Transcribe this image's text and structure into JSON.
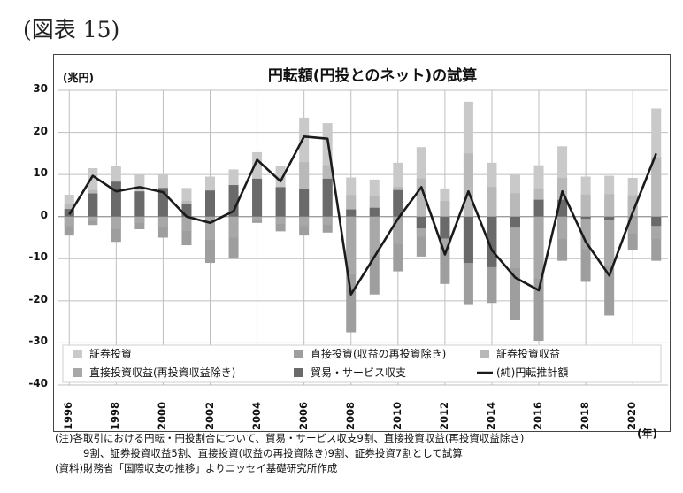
{
  "figure_label": "(図表 15)",
  "notes": [
    "(注)各取引における円転・円投割合について、貿易・サービス収支9割、直接投資収益(再投資収益除き)",
    "9割、証券投資収益5割、直接投資(収益の再投資除き)9割、証券投資7割として試算",
    "(資料)財務省「国際収支の推移」よりニッセイ基礎研究所作成"
  ],
  "colors": {
    "securities": "#c9c9c9",
    "fdi": "#9e9e9e",
    "sec_income": "#b9b9b9",
    "fdi_income": "#a8a8a8",
    "trade": "#6a6a6a",
    "net": "#1a1a1a"
  },
  "chart_data": {
    "type": "bar",
    "title": "円転額(円投とのネット)の試算",
    "ylabel": "(兆円)",
    "xlabel": "(年)",
    "ylim": [
      -40,
      30
    ],
    "yticks": [
      "30",
      "20",
      "10",
      "0",
      "-10",
      "-20",
      "-30",
      "-40"
    ],
    "xticks": [
      "1996",
      "1998",
      "2000",
      "2002",
      "2004",
      "2006",
      "2008",
      "2010",
      "2012",
      "2014",
      "2016",
      "2018",
      "2020"
    ],
    "years": [
      1996,
      1997,
      1998,
      1999,
      2000,
      2001,
      2002,
      2003,
      2004,
      2005,
      2006,
      2007,
      2008,
      2009,
      2010,
      2011,
      2012,
      2013,
      2014,
      2015,
      2016,
      2017,
      2018,
      2019,
      2020,
      2021
    ],
    "legend": [
      "証券投資",
      "直接投資(収益の再投資除き)",
      "証券投資収益",
      "直接投資収益(再投資収益除き)",
      "貿易・サービス収支",
      "(純)円転推計額"
    ],
    "positive_total": [
      5.2,
      11.5,
      12.0,
      10.0,
      10.0,
      6.8,
      9.5,
      11.2,
      15.3,
      12.0,
      23.5,
      22.2,
      9.3,
      8.8,
      12.8,
      16.5,
      6.7,
      27.3,
      12.8,
      10.1,
      12.2,
      16.7,
      9.5,
      9.7,
      9.2,
      25.7
    ],
    "negative_total": [
      -4.5,
      -2.0,
      -6.0,
      -3.0,
      -5.0,
      -6.8,
      -11.0,
      -10.0,
      -1.5,
      -3.5,
      -4.5,
      -3.8,
      -27.5,
      -18.5,
      -13.0,
      -9.5,
      -16.0,
      -21.0,
      -20.5,
      -24.5,
      -29.5,
      -10.5,
      -15.5,
      -23.5,
      -8.0,
      -10.5
    ],
    "trade_balance": [
      1.8,
      5.5,
      8.3,
      6.0,
      6.8,
      3.0,
      6.2,
      7.5,
      9.0,
      7.0,
      6.6,
      9.0,
      1.7,
      2.1,
      6.3,
      -2.8,
      -5.2,
      -11.0,
      -12.0,
      -2.6,
      4.0,
      4.0,
      -0.5,
      -0.8,
      0.0,
      -2.2
    ],
    "net_estimate": [
      0.5,
      9.7,
      6.0,
      7.0,
      5.8,
      0.0,
      -1.5,
      1.3,
      13.5,
      8.4,
      19.0,
      18.5,
      -18.5,
      -9.5,
      -0.5,
      7.0,
      -9.0,
      6.0,
      -8.0,
      -14.5,
      -17.5,
      6.0,
      -6.0,
      -14.0,
      1.0,
      15.0
    ]
  }
}
